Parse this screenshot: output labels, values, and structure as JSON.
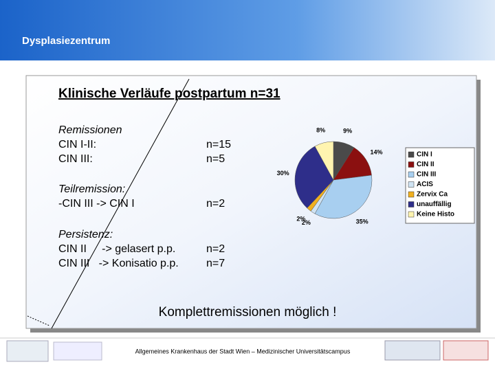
{
  "header": {
    "title": "Dysplasiezentrum"
  },
  "slide": {
    "heading": "Klinische Verläufe postpartum n=31",
    "groups": [
      {
        "title": "Remissionen",
        "rows": [
          {
            "left": "CIN I-II:",
            "right": "n=15"
          },
          {
            "left": "CIN III:",
            "right": "n=5"
          }
        ]
      },
      {
        "title": "Teilremission:",
        "rows": [
          {
            "left": "-CIN III -> CIN I",
            "right": "n=2"
          }
        ]
      },
      {
        "title": "Persistenz:",
        "rows": [
          {
            "left": "CIN II     -> gelasert p.p.",
            "right": "n=2"
          },
          {
            "left": "CIN III   -> Konisatio p.p.",
            "right": "n=7"
          }
        ]
      }
    ],
    "conclusion": "Komplettremissionen möglich !"
  },
  "footer": {
    "text": "Allgemeines Krankenhaus der Stadt Wien – Medizinischer Universitätscampus"
  },
  "chart_data": {
    "type": "pie",
    "categories": [
      "CIN I",
      "CIN II",
      "CIN III",
      "ACIS",
      "Zervix Ca",
      "unauffällig",
      "Keine Histo"
    ],
    "values": [
      9,
      14,
      35,
      2,
      2,
      30,
      8
    ],
    "value_labels": [
      "9%",
      "14%",
      "35%",
      "2%",
      "2%",
      "30%",
      "8%"
    ],
    "colors": [
      "#4a4a4a",
      "#8b1010",
      "#a8cff0",
      "#cfe3f3",
      "#f0b020",
      "#2e2e8a",
      "#fff4b0"
    ]
  }
}
